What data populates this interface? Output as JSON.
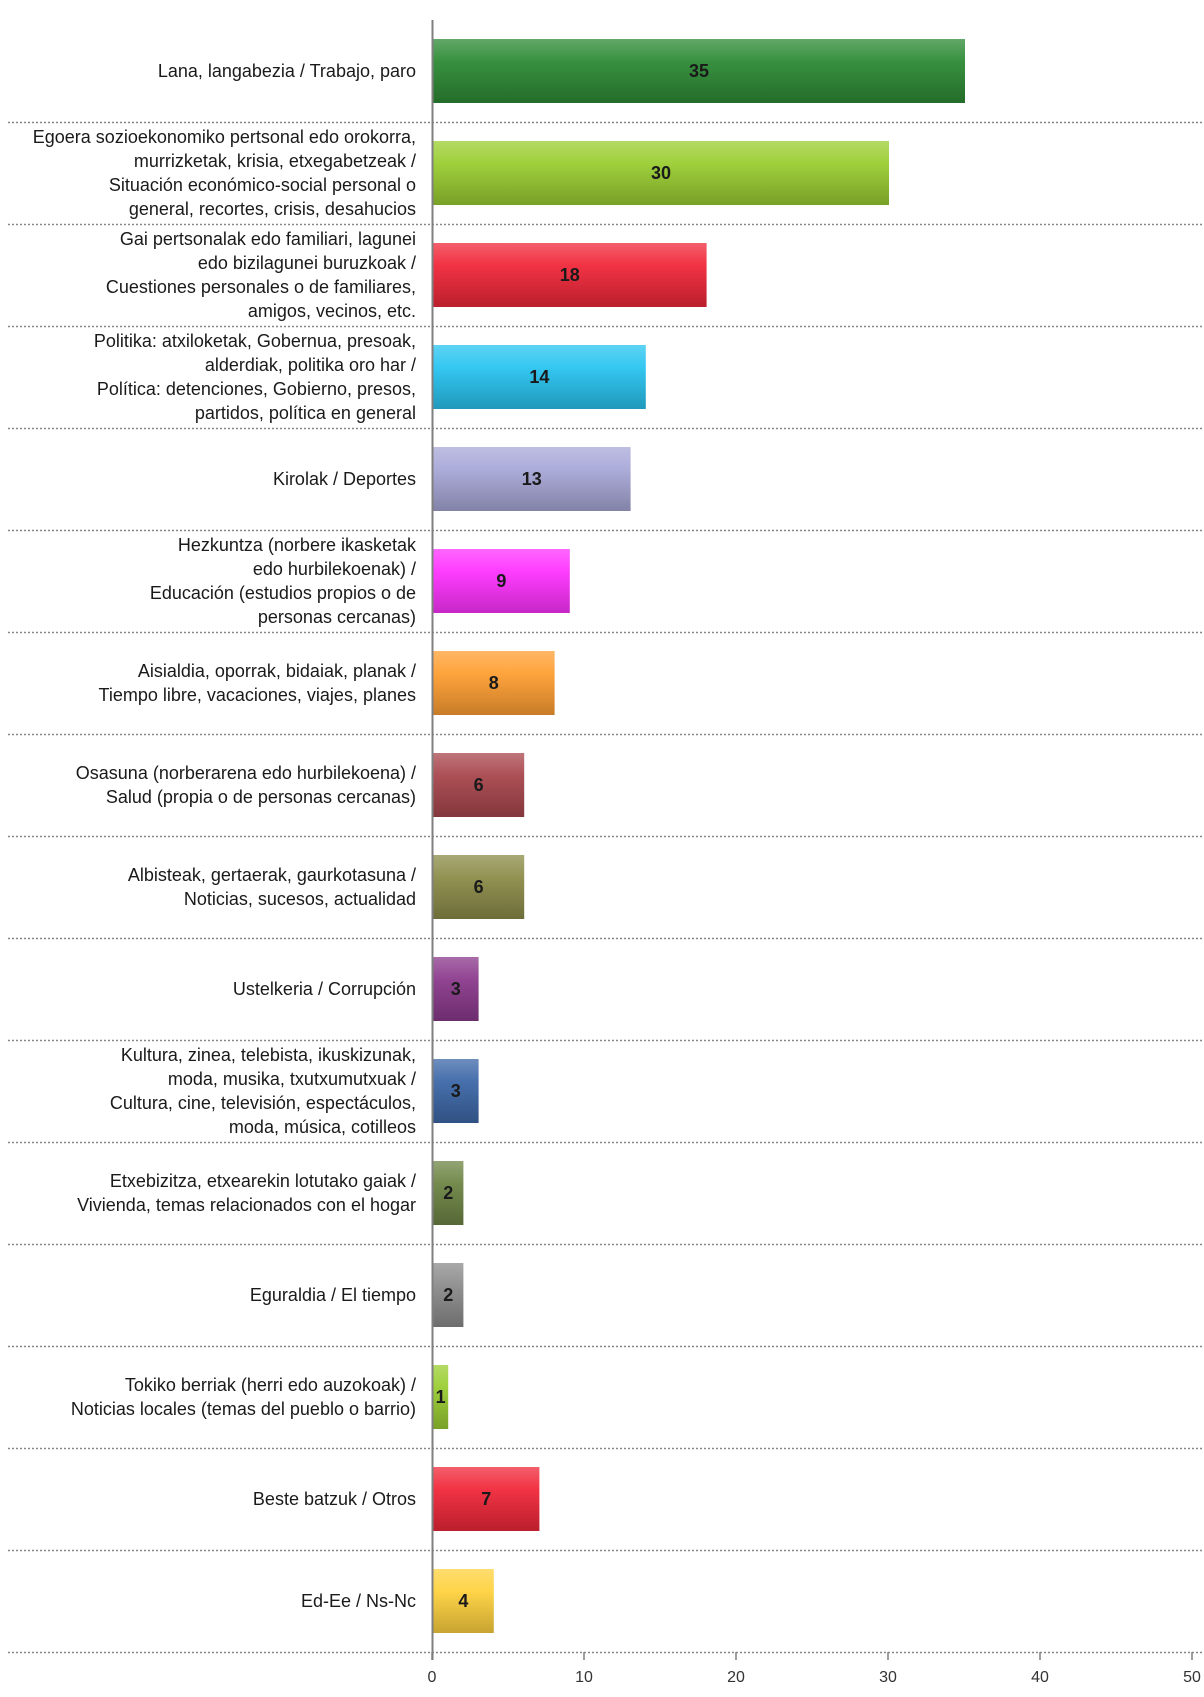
{
  "chart_data": {
    "type": "bar",
    "orientation": "horizontal",
    "categories": [
      [
        "Lana, langabezia / Trabajo, paro"
      ],
      [
        "Egoera sozioekonomiko pertsonal edo orokorra,",
        "murrizketak, krisia, etxegabetzeak /",
        "Situación económico-social personal o",
        "general, recortes, crisis, desahucios"
      ],
      [
        "Gai pertsonalak edo familiari, lagunei",
        "edo bizilagunei buruzkoak /",
        "Cuestiones personales o de familiares,",
        "amigos, vecinos, etc."
      ],
      [
        "Politika: atxiloketak, Gobernua, presoak,",
        "alderdiak, politika oro har /",
        "Política: detenciones, Gobierno, presos,",
        "partidos, política en general"
      ],
      [
        "Kirolak / Deportes"
      ],
      [
        "Hezkuntza (norbere ikasketak",
        "edo hurbilekoenak) /",
        "Educación (estudios propios o de",
        "personas cercanas)"
      ],
      [
        "Aisialdia, oporrak, bidaiak, planak /",
        "Tiempo libre, vacaciones, viajes, planes"
      ],
      [
        "Osasuna (norberarena edo hurbilekoena) /",
        "Salud (propia o de personas cercanas)"
      ],
      [
        "Albisteak, gertaerak, gaurkotasuna /",
        "Noticias, sucesos, actualidad"
      ],
      [
        "Ustelkeria / Corrupción"
      ],
      [
        "Kultura, zinea, telebista, ikuskizunak,",
        "moda, musika, txutxumutxuak /",
        "Cultura, cine, televisión, espectáculos,",
        "moda, música, cotilleos"
      ],
      [
        "Etxebizitza, etxearekin lotutako gaiak /",
        "Vivienda, temas relacionados con el hogar"
      ],
      [
        "Eguraldia / El tiempo"
      ],
      [
        "Tokiko berriak (herri edo auzokoak) /",
        "Noticias locales (temas del pueblo o barrio)"
      ],
      [
        "Beste batzuk / Otros"
      ],
      [
        "Ed-Ee / Ns-Nc"
      ]
    ],
    "values": [
      35,
      30,
      18,
      14,
      13,
      9,
      8,
      6,
      6,
      3,
      3,
      2,
      2,
      1,
      7,
      4
    ],
    "colors": [
      "#2e8b35",
      "#9acd32",
      "#f0283a",
      "#29c4f0",
      "#a8a8d8",
      "#ff33ff",
      "#ff9f33",
      "#a8474d",
      "#8c8c4a",
      "#8b3a8c",
      "#3d68a8",
      "#6e8545",
      "#8c8c8c",
      "#9acd32",
      "#f0283a",
      "#ffd23f"
    ],
    "xlim": [
      0,
      50
    ],
    "xticks": [
      "0",
      "10",
      "20",
      "30",
      "40",
      "50"
    ],
    "grid": "dotted horizontal separators between categories",
    "title": "",
    "xlabel": "",
    "ylabel": ""
  }
}
